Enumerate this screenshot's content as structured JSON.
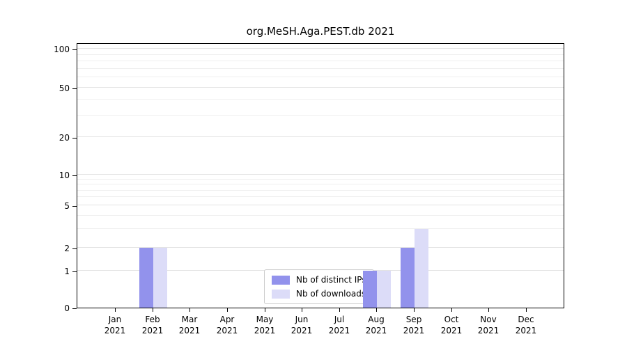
{
  "title": "org.MeSH.Aga.PEST.db 2021",
  "chart_data": {
    "type": "bar",
    "title": "org.MeSH.Aga.PEST.db 2021",
    "categories": [
      "Jan\n2021",
      "Feb\n2021",
      "Mar\n2021",
      "Apr\n2021",
      "May\n2021",
      "Jun\n2021",
      "Jul\n2021",
      "Aug\n2021",
      "Sep\n2021",
      "Oct\n2021",
      "Nov\n2021",
      "Dec\n2021"
    ],
    "series": [
      {
        "name": "Nb of distinct IPs",
        "color": "#9292ec",
        "values": [
          0,
          2,
          0,
          0,
          0,
          0,
          0,
          1,
          2,
          0,
          0,
          0
        ]
      },
      {
        "name": "Nb of downloads",
        "color": "#dcdcf8",
        "values": [
          0,
          2,
          0,
          0,
          0,
          0,
          0,
          1,
          3,
          0,
          0,
          0
        ]
      }
    ],
    "yticks": [
      0,
      1,
      2,
      5,
      10,
      20,
      50,
      100
    ],
    "ylim": [
      0,
      110
    ],
    "yscale": "symlog",
    "grid": "horizontal",
    "legend_position": "inside-bottom-center",
    "xlabel": "",
    "ylabel": ""
  }
}
